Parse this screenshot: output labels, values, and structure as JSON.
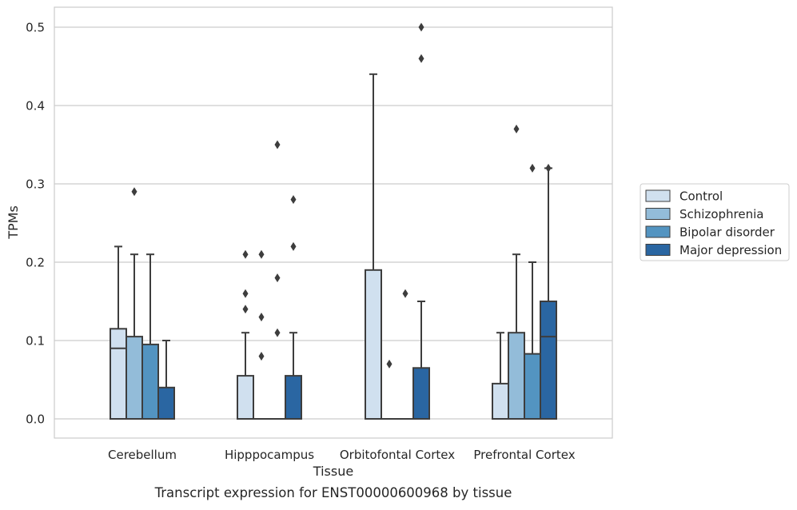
{
  "chart_data": {
    "type": "box",
    "title": "Transcript expression for ENST00000600968 by tissue",
    "xlabel": "Tissue",
    "ylabel": "TPMs",
    "ylim": [
      -0.025,
      0.525
    ],
    "yticks": [
      0.0,
      0.1,
      0.2,
      0.3,
      0.4,
      0.5
    ],
    "ytick_labels": [
      "0.0",
      "0.1",
      "0.2",
      "0.3",
      "0.4",
      "0.5"
    ],
    "grid": "horizontal",
    "legend_position": "right",
    "categories": [
      "Cerebellum",
      "Hipppocampus",
      "Orbitofontal Cortex",
      "Prefrontal Cortex"
    ],
    "series": [
      {
        "name": "Control",
        "color": "#d0e0ef",
        "boxes": [
          {
            "q1": 0.0,
            "median": 0.09,
            "q3": 0.115,
            "whisker_low": 0.0,
            "whisker_high": 0.22,
            "outliers": []
          },
          {
            "q1": 0.0,
            "median": 0.0,
            "q3": 0.055,
            "whisker_low": 0.0,
            "whisker_high": 0.11,
            "outliers": [
              0.21,
              0.16,
              0.14
            ]
          },
          {
            "q1": 0.0,
            "median": 0.0,
            "q3": 0.19,
            "whisker_low": 0.0,
            "whisker_high": 0.44,
            "outliers": []
          },
          {
            "q1": 0.0,
            "median": 0.0,
            "q3": 0.045,
            "whisker_low": 0.0,
            "whisker_high": 0.11,
            "outliers": []
          }
        ]
      },
      {
        "name": "Schizophrenia",
        "color": "#93bcd9",
        "boxes": [
          {
            "q1": 0.0,
            "median": 0.0,
            "q3": 0.105,
            "whisker_low": 0.0,
            "whisker_high": 0.21,
            "outliers": [
              0.29
            ]
          },
          {
            "q1": 0.0,
            "median": 0.0,
            "q3": 0.0,
            "whisker_low": 0.0,
            "whisker_high": 0.0,
            "outliers": [
              0.21,
              0.13,
              0.08
            ]
          },
          {
            "q1": 0.0,
            "median": 0.0,
            "q3": 0.0,
            "whisker_low": 0.0,
            "whisker_high": 0.0,
            "outliers": [
              0.07
            ]
          },
          {
            "q1": 0.0,
            "median": 0.0,
            "q3": 0.11,
            "whisker_low": 0.0,
            "whisker_high": 0.21,
            "outliers": [
              0.37
            ]
          }
        ]
      },
      {
        "name": "Bipolar disorder",
        "color": "#5394c1",
        "boxes": [
          {
            "q1": 0.0,
            "median": 0.0,
            "q3": 0.095,
            "whisker_low": 0.0,
            "whisker_high": 0.21,
            "outliers": []
          },
          {
            "q1": 0.0,
            "median": 0.0,
            "q3": 0.0,
            "whisker_low": 0.0,
            "whisker_high": 0.0,
            "outliers": [
              0.35,
              0.18,
              0.11
            ]
          },
          {
            "q1": 0.0,
            "median": 0.0,
            "q3": 0.0,
            "whisker_low": 0.0,
            "whisker_high": 0.0,
            "outliers": [
              0.16
            ]
          },
          {
            "q1": 0.0,
            "median": 0.0,
            "q3": 0.083,
            "whisker_low": 0.0,
            "whisker_high": 0.2,
            "outliers": [
              0.32
            ]
          }
        ]
      },
      {
        "name": "Major depression",
        "color": "#2a66a2",
        "boxes": [
          {
            "q1": 0.0,
            "median": 0.0,
            "q3": 0.04,
            "whisker_low": 0.0,
            "whisker_high": 0.1,
            "outliers": []
          },
          {
            "q1": 0.0,
            "median": 0.0,
            "q3": 0.055,
            "whisker_low": 0.0,
            "whisker_high": 0.11,
            "outliers": [
              0.28,
              0.22
            ]
          },
          {
            "q1": 0.0,
            "median": 0.0,
            "q3": 0.065,
            "whisker_low": 0.0,
            "whisker_high": 0.15,
            "outliers": [
              0.5,
              0.46
            ]
          },
          {
            "q1": 0.0,
            "median": 0.105,
            "q3": 0.15,
            "whisker_low": 0.0,
            "whisker_high": 0.32,
            "outliers": [
              0.32
            ]
          }
        ]
      }
    ]
  }
}
